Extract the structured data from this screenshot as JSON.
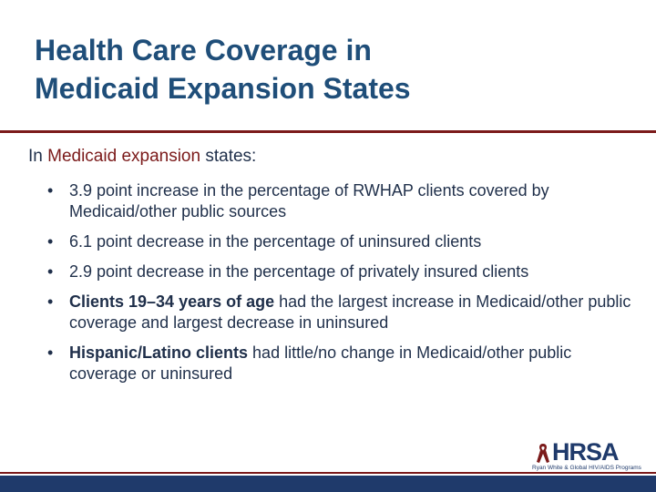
{
  "slide": {
    "title_line1": "Health Care Coverage in",
    "title_line2": "Medicaid Expansion States",
    "intro_prefix": "In ",
    "intro_highlight": "Medicaid expansion",
    "intro_suffix": " states:",
    "bullets": [
      {
        "bold": "",
        "text": "3.9 point increase in the percentage of RWHAP clients covered by Medicaid/other public sources"
      },
      {
        "bold": "",
        "text": "6.1 point decrease in the percentage of uninsured clients"
      },
      {
        "bold": "",
        "text": "2.9 point decrease in the percentage of privately insured clients"
      },
      {
        "bold": "Clients 19–34 years of age",
        "text": " had the largest increase in Medicaid/other public coverage and largest decrease in uninsured"
      },
      {
        "bold": "Hispanic/Latino clients",
        "text": " had little/no change in Medicaid/other public coverage or uninsured"
      }
    ]
  },
  "logo": {
    "wordmark": "HRSA",
    "subtitle": "Ryan White & Global HIV/AIDS Programs",
    "icon": "ribbon-icon"
  },
  "colors": {
    "title": "#1f4e79",
    "accent": "#7b1a1a",
    "body": "#1f2f4a",
    "footer": "#1f3a6b"
  }
}
